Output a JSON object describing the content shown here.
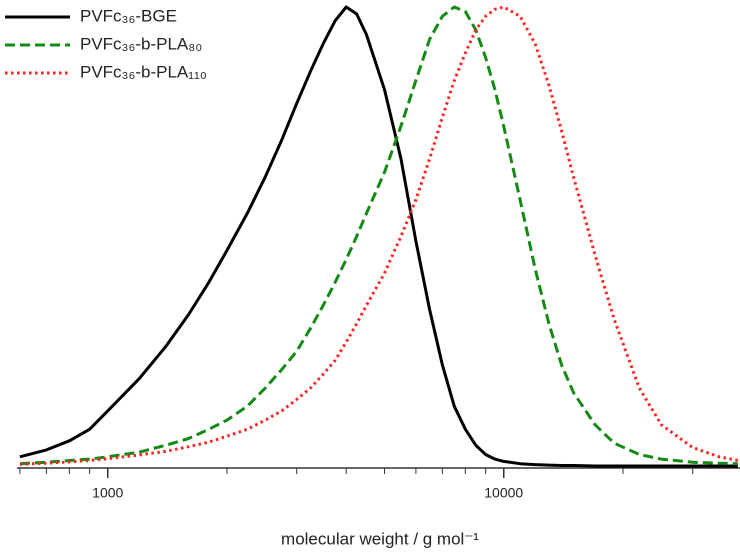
{
  "chart_data": {
    "type": "line",
    "xlabel": "molecular weight / g mol⁻¹",
    "xscale": "log",
    "xlim": [
      590,
      39500
    ],
    "xticks": [
      1000,
      10000
    ],
    "xminor": [
      600,
      700,
      800,
      900,
      2000,
      3000,
      4000,
      5000,
      6000,
      7000,
      8000,
      9000,
      20000,
      30000
    ],
    "ylim": [
      0,
      1
    ],
    "legend": "top-left",
    "x": [
      600,
      700,
      800,
      900,
      1000,
      1200,
      1400,
      1600,
      1800,
      2000,
      2250,
      2500,
      2750,
      3000,
      3250,
      3500,
      3750,
      4000,
      4250,
      4500,
      5000,
      5500,
      6000,
      6500,
      7000,
      7500,
      8000,
      8500,
      9000,
      9500,
      10000,
      11000,
      12000,
      13000,
      14000,
      15000,
      17000,
      19000,
      22000,
      25000,
      30000,
      35000,
      39000
    ],
    "series": [
      {
        "name": "PVFc₃₆-BGE",
        "color": "#000000",
        "style": "solid",
        "values": [
          0.02,
          0.035,
          0.055,
          0.08,
          0.12,
          0.19,
          0.26,
          0.33,
          0.4,
          0.47,
          0.55,
          0.63,
          0.71,
          0.79,
          0.86,
          0.92,
          0.97,
          1.0,
          0.985,
          0.94,
          0.82,
          0.67,
          0.49,
          0.34,
          0.22,
          0.13,
          0.08,
          0.045,
          0.025,
          0.015,
          0.01,
          0.005,
          0.003,
          0.002,
          0.001,
          0.001,
          0,
          0,
          0,
          0,
          0,
          0,
          0
        ]
      },
      {
        "name": "PVFc₃₆-b-PLA₈₀",
        "color": "#138a13",
        "style": "dashed",
        "values": [
          0.005,
          0.008,
          0.012,
          0.015,
          0.02,
          0.03,
          0.045,
          0.06,
          0.08,
          0.1,
          0.13,
          0.17,
          0.21,
          0.25,
          0.3,
          0.35,
          0.4,
          0.45,
          0.5,
          0.55,
          0.64,
          0.74,
          0.84,
          0.93,
          0.98,
          1.0,
          0.99,
          0.95,
          0.89,
          0.82,
          0.74,
          0.58,
          0.43,
          0.31,
          0.22,
          0.16,
          0.09,
          0.05,
          0.025,
          0.015,
          0.008,
          0.006,
          0.005
        ]
      },
      {
        "name": "PVFc₃₆-b-PLA₁₁₀",
        "color": "#ff2222",
        "style": "dotted",
        "values": [
          0.004,
          0.006,
          0.009,
          0.012,
          0.016,
          0.024,
          0.032,
          0.042,
          0.052,
          0.065,
          0.08,
          0.1,
          0.12,
          0.145,
          0.17,
          0.2,
          0.23,
          0.27,
          0.31,
          0.35,
          0.42,
          0.5,
          0.58,
          0.67,
          0.76,
          0.84,
          0.9,
          0.95,
          0.98,
          0.995,
          1.0,
          0.98,
          0.92,
          0.83,
          0.73,
          0.63,
          0.46,
          0.32,
          0.17,
          0.09,
          0.04,
          0.02,
          0.012
        ]
      }
    ]
  }
}
